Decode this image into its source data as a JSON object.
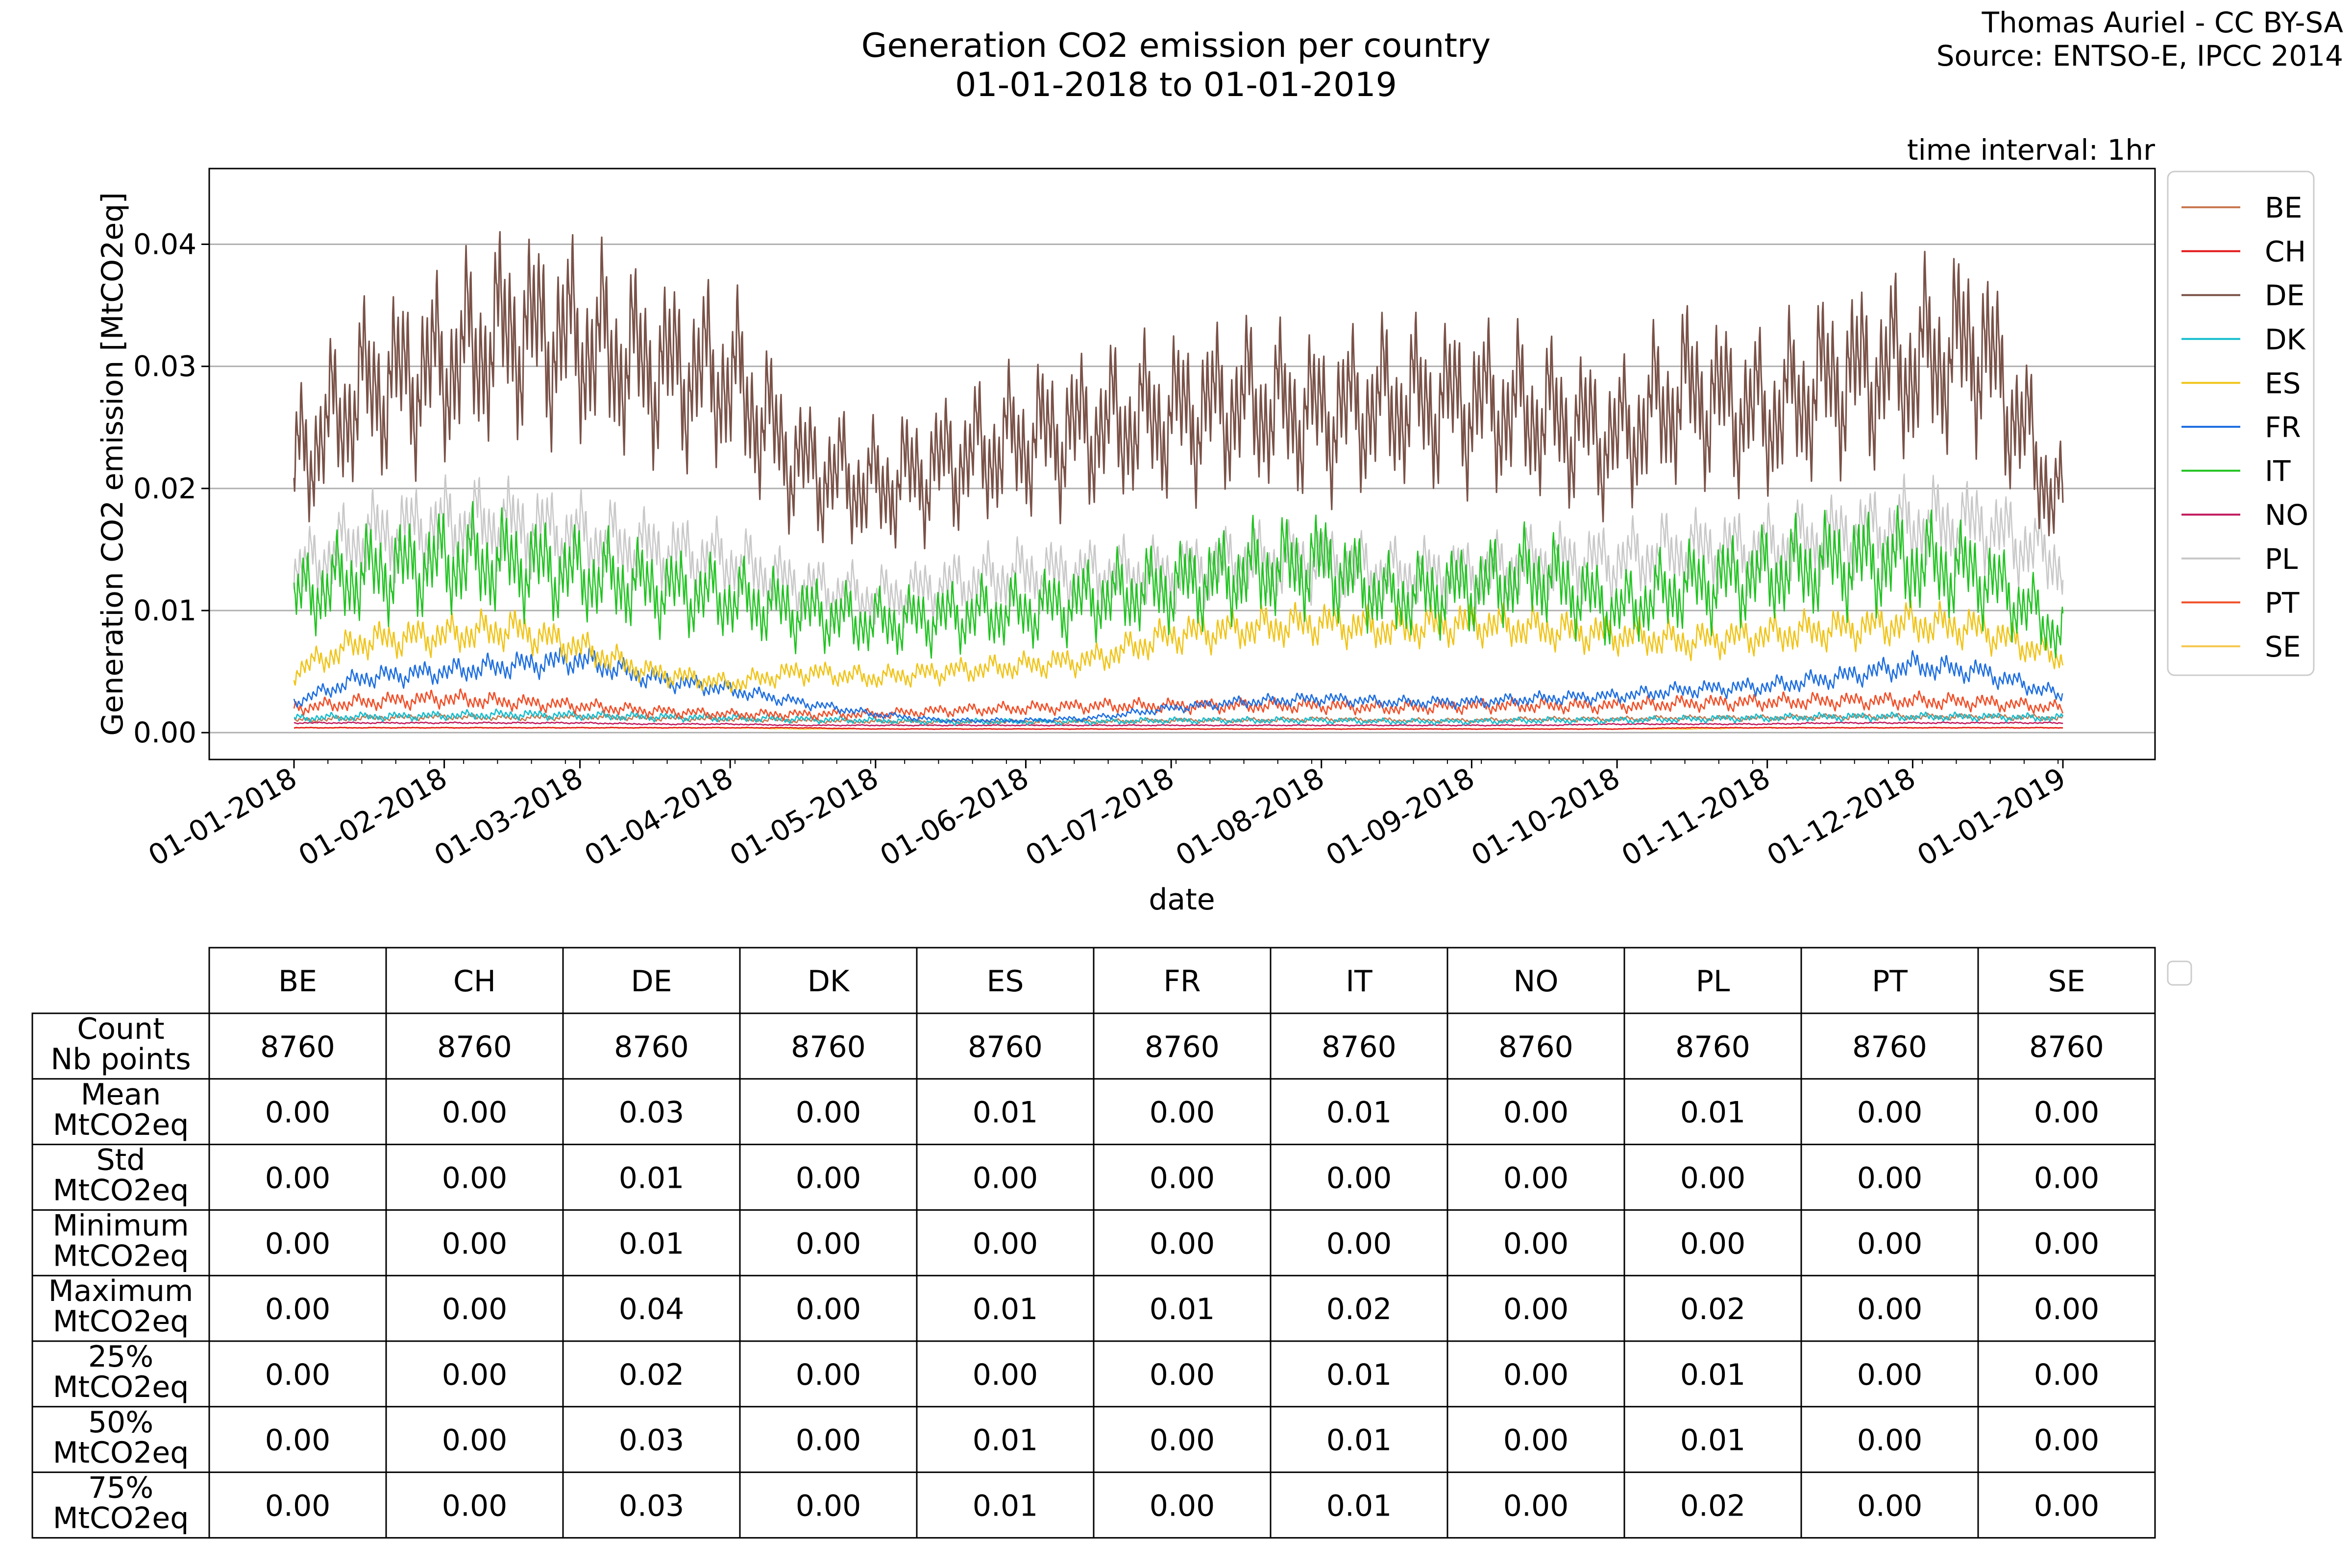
{
  "title_lines": [
    "Generation CO2 emission per country",
    "01-01-2018 to 01-01-2019"
  ],
  "credit_lines": [
    "Thomas Auriel - CC BY-SA",
    "Source: ENTSO-E, IPCC 2014"
  ],
  "interval_note": "time interval: 1hr",
  "chart_data": {
    "type": "line",
    "title": "Generation CO2 emission per country",
    "subtitle": "01-01-2018 to 01-01-2019",
    "xlabel": "date",
    "ylabel": "Generation CO2 emission [MtCO2eq]",
    "x_range": [
      "2018-01-01",
      "2019-01-01"
    ],
    "ylim": [
      -0.0022,
      0.0462
    ],
    "y_ticks": [
      0.0,
      0.01,
      0.02,
      0.03,
      0.04
    ],
    "y_tick_labels": [
      "0.00",
      "0.01",
      "0.02",
      "0.03",
      "0.04"
    ],
    "x_tick_labels": [
      "01-01-2018",
      "01-02-2018",
      "01-03-2018",
      "01-04-2018",
      "01-05-2018",
      "01-06-2018",
      "01-07-2018",
      "01-08-2018",
      "01-09-2018",
      "01-10-2018",
      "01-11-2018",
      "01-12-2018",
      "01-01-2019"
    ],
    "grid": "horizontal",
    "legend": "outside-right",
    "x": [
      "2018-01-01",
      "2018-01-15",
      "2018-02-01",
      "2018-02-15",
      "2018-03-01",
      "2018-03-15",
      "2018-04-01",
      "2018-04-15",
      "2018-05-01",
      "2018-05-15",
      "2018-06-01",
      "2018-06-15",
      "2018-07-01",
      "2018-07-15",
      "2018-08-01",
      "2018-08-15",
      "2018-09-01",
      "2018-09-15",
      "2018-10-01",
      "2018-10-15",
      "2018-11-01",
      "2018-11-15",
      "2018-12-01",
      "2018-12-15",
      "2019-01-01"
    ],
    "series": [
      {
        "name": "BE",
        "color": "#c87850",
        "values": [
          0.001,
          0.0012,
          0.0013,
          0.0012,
          0.0013,
          0.0012,
          0.0011,
          0.001,
          0.0009,
          0.0009,
          0.0009,
          0.0009,
          0.001,
          0.001,
          0.0011,
          0.001,
          0.001,
          0.0011,
          0.0011,
          0.0012,
          0.0012,
          0.0013,
          0.0013,
          0.0013,
          0.0012
        ]
      },
      {
        "name": "CH",
        "color": "#e41a1c",
        "values": [
          0.0004,
          0.0004,
          0.0004,
          0.0004,
          0.0004,
          0.0004,
          0.0004,
          0.0004,
          0.0003,
          0.0003,
          0.0003,
          0.0003,
          0.0003,
          0.0003,
          0.0003,
          0.0003,
          0.0003,
          0.0003,
          0.0003,
          0.0004,
          0.0004,
          0.0004,
          0.0004,
          0.0004,
          0.0004
        ]
      },
      {
        "name": "DE",
        "color": "#7a5248",
        "values": [
          0.022,
          0.028,
          0.03,
          0.033,
          0.032,
          0.03,
          0.029,
          0.022,
          0.02,
          0.022,
          0.024,
          0.025,
          0.026,
          0.027,
          0.026,
          0.027,
          0.027,
          0.026,
          0.024,
          0.028,
          0.026,
          0.029,
          0.03,
          0.032,
          0.018
        ]
      },
      {
        "name": "DK",
        "color": "#17becf",
        "values": [
          0.0012,
          0.0013,
          0.0014,
          0.0015,
          0.0014,
          0.0013,
          0.0012,
          0.0011,
          0.001,
          0.0009,
          0.0009,
          0.0009,
          0.001,
          0.001,
          0.001,
          0.0009,
          0.0009,
          0.001,
          0.001,
          0.0011,
          0.0012,
          0.0013,
          0.0013,
          0.0013,
          0.0012
        ]
      },
      {
        "name": "ES",
        "color": "#f0c419",
        "values": [
          0.005,
          0.0075,
          0.008,
          0.0085,
          0.007,
          0.005,
          0.004,
          0.005,
          0.0045,
          0.005,
          0.0055,
          0.006,
          0.008,
          0.0085,
          0.009,
          0.0085,
          0.009,
          0.0085,
          0.008,
          0.0075,
          0.008,
          0.0085,
          0.009,
          0.0085,
          0.006
        ]
      },
      {
        "name": "FR",
        "color": "#1f6fe0",
        "values": [
          0.0025,
          0.0045,
          0.005,
          0.0055,
          0.006,
          0.0045,
          0.0035,
          0.0025,
          0.0015,
          0.001,
          0.001,
          0.0012,
          0.002,
          0.0025,
          0.0028,
          0.0025,
          0.0025,
          0.0028,
          0.003,
          0.0035,
          0.0038,
          0.0045,
          0.0055,
          0.005,
          0.003
        ]
      },
      {
        "name": "IT",
        "color": "#21c321",
        "values": [
          0.011,
          0.013,
          0.014,
          0.014,
          0.013,
          0.012,
          0.011,
          0.01,
          0.009,
          0.0095,
          0.01,
          0.011,
          0.012,
          0.013,
          0.014,
          0.011,
          0.012,
          0.013,
          0.01,
          0.012,
          0.013,
          0.014,
          0.014,
          0.013,
          0.008
        ]
      },
      {
        "name": "NO",
        "color": "#c2185b",
        "values": [
          0.0008,
          0.0008,
          0.0008,
          0.0008,
          0.0008,
          0.0007,
          0.0007,
          0.0006,
          0.0006,
          0.0006,
          0.0006,
          0.0006,
          0.0006,
          0.0006,
          0.0006,
          0.0006,
          0.0006,
          0.0006,
          0.0007,
          0.0007,
          0.0007,
          0.0008,
          0.0008,
          0.0008,
          0.0008
        ]
      },
      {
        "name": "PL",
        "color": "#c8c8c8",
        "values": [
          0.013,
          0.016,
          0.017,
          0.017,
          0.016,
          0.015,
          0.014,
          0.012,
          0.011,
          0.012,
          0.013,
          0.013,
          0.013,
          0.014,
          0.014,
          0.013,
          0.013,
          0.014,
          0.014,
          0.015,
          0.015,
          0.016,
          0.017,
          0.017,
          0.014
        ]
      },
      {
        "name": "PT",
        "color": "#f0502a",
        "values": [
          0.002,
          0.0025,
          0.0028,
          0.0025,
          0.0022,
          0.0018,
          0.0015,
          0.0015,
          0.0015,
          0.0018,
          0.002,
          0.0022,
          0.0022,
          0.0022,
          0.0022,
          0.002,
          0.0022,
          0.0022,
          0.0022,
          0.0024,
          0.0025,
          0.0026,
          0.0026,
          0.0025,
          0.002
        ]
      },
      {
        "name": "SE",
        "color": "#f5c850",
        "values": [
          0.0004,
          0.0004,
          0.0004,
          0.0004,
          0.0004,
          0.0004,
          0.0004,
          0.0003,
          0.0003,
          0.0003,
          0.0003,
          0.0003,
          0.0003,
          0.0003,
          0.0003,
          0.0003,
          0.0003,
          0.0003,
          0.0003,
          0.0003,
          0.0004,
          0.0004,
          0.0004,
          0.0004,
          0.0004
        ]
      }
    ]
  },
  "stats_table": {
    "columns": [
      "BE",
      "CH",
      "DE",
      "DK",
      "ES",
      "FR",
      "IT",
      "NO",
      "PL",
      "PT",
      "SE"
    ],
    "rows": [
      {
        "label": [
          "Count",
          "Nb points"
        ],
        "values": [
          "8760",
          "8760",
          "8760",
          "8760",
          "8760",
          "8760",
          "8760",
          "8760",
          "8760",
          "8760",
          "8760"
        ]
      },
      {
        "label": [
          "Mean",
          "MtCO2eq"
        ],
        "values": [
          "0.00",
          "0.00",
          "0.03",
          "0.00",
          "0.01",
          "0.00",
          "0.01",
          "0.00",
          "0.01",
          "0.00",
          "0.00"
        ]
      },
      {
        "label": [
          "Std",
          "MtCO2eq"
        ],
        "values": [
          "0.00",
          "0.00",
          "0.01",
          "0.00",
          "0.00",
          "0.00",
          "0.00",
          "0.00",
          "0.00",
          "0.00",
          "0.00"
        ]
      },
      {
        "label": [
          "Minimum",
          "MtCO2eq"
        ],
        "values": [
          "0.00",
          "0.00",
          "0.01",
          "0.00",
          "0.00",
          "0.00",
          "0.00",
          "0.00",
          "0.00",
          "0.00",
          "0.00"
        ]
      },
      {
        "label": [
          "Maximum",
          "MtCO2eq"
        ],
        "values": [
          "0.00",
          "0.00",
          "0.04",
          "0.00",
          "0.01",
          "0.01",
          "0.02",
          "0.00",
          "0.02",
          "0.00",
          "0.00"
        ]
      },
      {
        "label": [
          "25%",
          "MtCO2eq"
        ],
        "values": [
          "0.00",
          "0.00",
          "0.02",
          "0.00",
          "0.00",
          "0.00",
          "0.01",
          "0.00",
          "0.01",
          "0.00",
          "0.00"
        ]
      },
      {
        "label": [
          "50%",
          "MtCO2eq"
        ],
        "values": [
          "0.00",
          "0.00",
          "0.03",
          "0.00",
          "0.01",
          "0.00",
          "0.01",
          "0.00",
          "0.01",
          "0.00",
          "0.00"
        ]
      },
      {
        "label": [
          "75%",
          "MtCO2eq"
        ],
        "values": [
          "0.00",
          "0.00",
          "0.03",
          "0.00",
          "0.01",
          "0.00",
          "0.01",
          "0.00",
          "0.02",
          "0.00",
          "0.00"
        ]
      }
    ]
  }
}
